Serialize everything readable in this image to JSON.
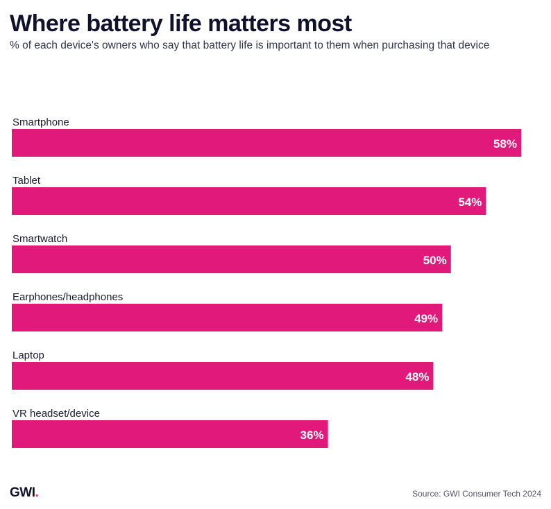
{
  "header": {
    "title": "Where battery life matters most",
    "subtitle": "% of each device's owners who say that battery life is important to them when purchasing that device"
  },
  "footer": {
    "logo_text": "GWI",
    "logo_dot": ".",
    "source": "Source: GWI Consumer Tech 2024"
  },
  "colors": {
    "bar": "#e0197a",
    "bar_label": "#ffffff",
    "category_label": "#1a1a2e"
  },
  "chart_data": {
    "type": "bar",
    "orientation": "horizontal",
    "title": "Where battery life matters most",
    "subtitle": "% of each device's owners who say that battery life is important to them when purchasing that device",
    "categories": [
      "Smartphone",
      "Tablet",
      "Smartwatch",
      "Earphones/headphones",
      "Laptop",
      "VR headset/device"
    ],
    "values": [
      58,
      54,
      50,
      49,
      48,
      36
    ],
    "value_labels": [
      "58%",
      "54%",
      "50%",
      "49%",
      "48%",
      "36%"
    ],
    "xlabel": "",
    "ylabel": "",
    "xlim": [
      0,
      58
    ],
    "grid": false,
    "legend": "none"
  }
}
